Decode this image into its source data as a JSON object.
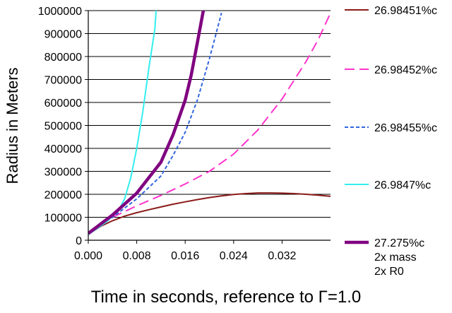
{
  "chart_data": {
    "type": "line",
    "xlabel": "Time in seconds, reference to Γ=1.0",
    "ylabel": "Radius in Meters",
    "xlim": [
      0,
      0.04
    ],
    "ylim": [
      0,
      1000000
    ],
    "x_ticks": [
      {
        "value": 0.0,
        "label": "0.000"
      },
      {
        "value": 0.008,
        "label": "0.008"
      },
      {
        "value": 0.016,
        "label": "0.016"
      },
      {
        "value": 0.024,
        "label": "0.024"
      },
      {
        "value": 0.032,
        "label": "0.032"
      }
    ],
    "y_ticks": [
      {
        "value": 0,
        "label": "0"
      },
      {
        "value": 100000,
        "label": "100000"
      },
      {
        "value": 200000,
        "label": "200000"
      },
      {
        "value": 300000,
        "label": "300000"
      },
      {
        "value": 400000,
        "label": "400000"
      },
      {
        "value": 500000,
        "label": "500000"
      },
      {
        "value": 600000,
        "label": "600000"
      },
      {
        "value": 700000,
        "label": "700000"
      },
      {
        "value": 800000,
        "label": "800000"
      },
      {
        "value": 900000,
        "label": "900000"
      },
      {
        "value": 1000000,
        "label": "1000000"
      }
    ],
    "grid": "horizontal",
    "legend_position": "right",
    "series": [
      {
        "name": "26.98451%c",
        "color": "#8B1A1A",
        "style": "solid",
        "weight": "normal",
        "x": [
          0.0,
          0.002,
          0.004,
          0.006,
          0.008,
          0.01,
          0.012,
          0.014,
          0.016,
          0.018,
          0.02,
          0.022,
          0.024,
          0.026,
          0.028,
          0.03,
          0.032,
          0.034,
          0.036,
          0.038,
          0.04
        ],
        "y": [
          25000,
          60000,
          85000,
          105000,
          120000,
          133000,
          145000,
          157000,
          167000,
          177000,
          186000,
          193000,
          199000,
          203000,
          206000,
          206000,
          205000,
          203000,
          200000,
          196000,
          191000
        ]
      },
      {
        "name": "26.98452%c",
        "color": "#FF33CC",
        "style": "long-dash",
        "weight": "normal",
        "x": [
          0.0,
          0.004,
          0.008,
          0.012,
          0.016,
          0.02,
          0.024,
          0.028,
          0.032,
          0.036,
          0.038,
          0.04
        ],
        "y": [
          25000,
          100000,
          150000,
          195000,
          245000,
          300000,
          375000,
          480000,
          615000,
          780000,
          875000,
          990000
        ]
      },
      {
        "name": "26.98455%c",
        "color": "#3366DD",
        "style": "short-dash",
        "weight": "normal",
        "x": [
          0.0,
          0.004,
          0.008,
          0.012,
          0.014,
          0.016,
          0.018,
          0.02,
          0.021,
          0.022
        ],
        "y": [
          25000,
          100000,
          180000,
          280000,
          370000,
          470000,
          610000,
          790000,
          890000,
          990000
        ]
      },
      {
        "name": "26.9847%c",
        "color": "#33EEEE",
        "style": "solid",
        "weight": "normal",
        "x": [
          0.0,
          0.003,
          0.005,
          0.006,
          0.007,
          0.008,
          0.009,
          0.01,
          0.011,
          0.0112
        ],
        "y": [
          25000,
          80000,
          130000,
          180000,
          270000,
          400000,
          560000,
          750000,
          920000,
          1000000
        ]
      },
      {
        "name": "27.275%c\n2x mass\n2x R0",
        "color": "#800080",
        "style": "solid",
        "weight": "bold",
        "x": [
          0.0,
          0.004,
          0.008,
          0.012,
          0.014,
          0.016,
          0.017,
          0.018,
          0.019
        ],
        "y": [
          30000,
          110000,
          205000,
          340000,
          460000,
          610000,
          720000,
          860000,
          1000000
        ]
      }
    ]
  }
}
